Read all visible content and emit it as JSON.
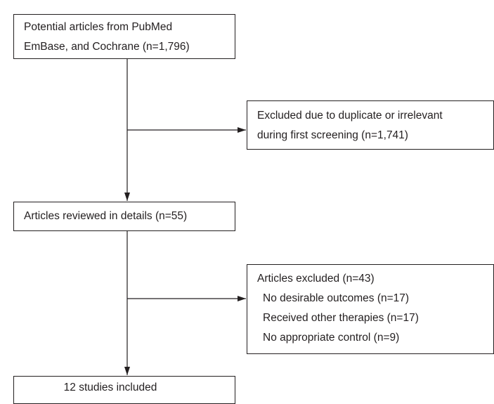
{
  "boxes": {
    "identified": {
      "lines": [
        "Potential articles from PubMed",
        "EmBase, and Cochrane (n=1,796)"
      ]
    },
    "excluded_first": {
      "lines": [
        "Excluded due to duplicate or irrelevant",
        "during first screening (n=1,741)"
      ]
    },
    "reviewed": {
      "text": "Articles reviewed in details (n=55)"
    },
    "excluded_second": {
      "header": "Articles excluded (n=43)",
      "reasons": [
        "No desirable outcomes (n=17)",
        "Received other therapies (n=17)",
        "No appropriate control (n=9)"
      ]
    },
    "included": {
      "text": "12 studies included"
    }
  },
  "colors": {
    "stroke": "#231f20",
    "text": "#231f20",
    "background": "#ffffff"
  }
}
